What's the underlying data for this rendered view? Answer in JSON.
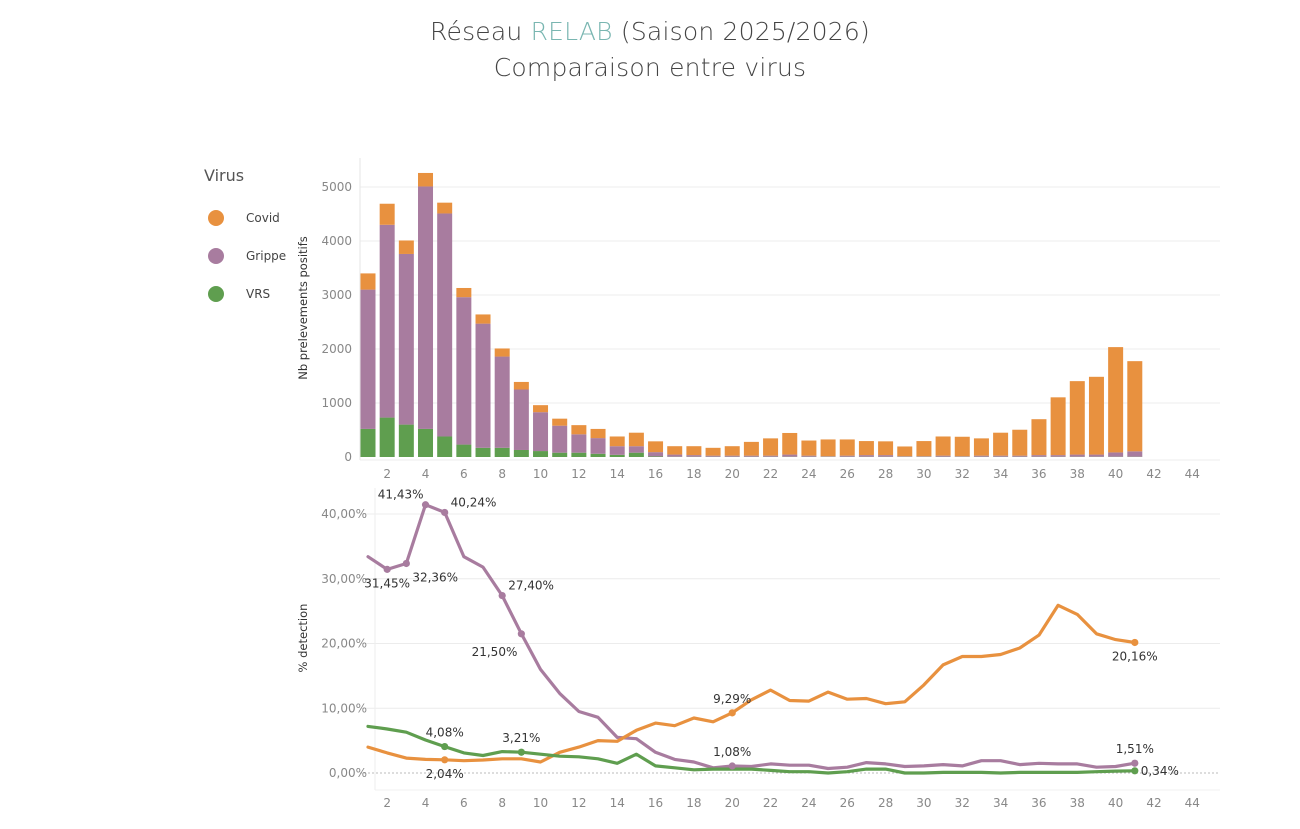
{
  "header": {
    "title_prefix": "Réseau",
    "title_accent": "RELAB",
    "title_suffix": "(Saison 2025/2026)",
    "subtitle": "Comparaison entre virus",
    "accent_color": "#79b6b1"
  },
  "legend": {
    "title": "Virus",
    "items": [
      {
        "label": "Covid",
        "color": "#e8913f"
      },
      {
        "label": "Grippe",
        "color": "#a87c9f"
      },
      {
        "label": "VRS",
        "color": "#5f9e4f"
      }
    ]
  },
  "chart_data": [
    {
      "type": "bar",
      "stacked": true,
      "ylabel": "Nb prelevements positifs",
      "xlabel": "",
      "ylim": [
        0,
        5300
      ],
      "xlim": [
        0.5,
        45
      ],
      "yticks": [
        0,
        1000,
        2000,
        3000,
        4000,
        5000
      ],
      "xticks": [
        2,
        4,
        6,
        8,
        10,
        12,
        14,
        16,
        18,
        20,
        22,
        24,
        26,
        28,
        30,
        32,
        34,
        36,
        38,
        40,
        42,
        44
      ],
      "grid": true,
      "stack_order": [
        "VRS",
        "Grippe",
        "Covid"
      ],
      "x": [
        1,
        2,
        3,
        4,
        5,
        6,
        7,
        8,
        9,
        10,
        11,
        12,
        13,
        14,
        15,
        16,
        17,
        18,
        19,
        20,
        21,
        22,
        23,
        24,
        25,
        26,
        27,
        28,
        29,
        30,
        31,
        32,
        33,
        34,
        35,
        36,
        37,
        38,
        39,
        40,
        41
      ],
      "series": [
        {
          "name": "VRS",
          "color": "#5f9e4f",
          "values": [
            520,
            730,
            600,
            520,
            380,
            230,
            170,
            170,
            130,
            110,
            80,
            80,
            60,
            40,
            80,
            10,
            5,
            5,
            5,
            5,
            5,
            5,
            5,
            5,
            5,
            5,
            5,
            5,
            5,
            5,
            5,
            5,
            5,
            5,
            5,
            5,
            5,
            5,
            5,
            5,
            5
          ]
        },
        {
          "name": "Grippe",
          "color": "#a87c9f",
          "values": [
            2580,
            3570,
            3160,
            4490,
            4130,
            2730,
            2300,
            1690,
            1120,
            720,
            500,
            340,
            290,
            160,
            120,
            80,
            40,
            30,
            20,
            20,
            20,
            20,
            40,
            20,
            10,
            20,
            30,
            30,
            10,
            10,
            20,
            10,
            20,
            20,
            20,
            30,
            30,
            40,
            40,
            80,
            100
          ]
        },
        {
          "name": "Covid",
          "color": "#e8913f",
          "values": [
            300,
            390,
            250,
            250,
            200,
            170,
            170,
            150,
            140,
            130,
            130,
            170,
            170,
            180,
            250,
            200,
            155,
            165,
            145,
            175,
            255,
            320,
            400,
            280,
            310,
            300,
            260,
            255,
            180,
            280,
            355,
            360,
            320,
            425,
            480,
            665,
            1070,
            1360,
            1440,
            1950,
            1670
          ]
        }
      ]
    },
    {
      "type": "line",
      "ylabel": "% detection",
      "xlabel": "",
      "ylim": [
        -5,
        44
      ],
      "xlim": [
        0.5,
        45
      ],
      "yticks": [
        "0,00%",
        "10,00%",
        "20,00%",
        "30,00%",
        "40,00%"
      ],
      "ytick_values": [
        0,
        10,
        20,
        30,
        40
      ],
      "xticks": [
        2,
        4,
        6,
        8,
        10,
        12,
        14,
        16,
        18,
        20,
        22,
        24,
        26,
        28,
        30,
        32,
        34,
        36,
        38,
        40,
        42,
        44
      ],
      "grid": true,
      "x": [
        1,
        2,
        3,
        4,
        5,
        6,
        7,
        8,
        9,
        10,
        11,
        12,
        13,
        14,
        15,
        16,
        17,
        18,
        19,
        20,
        21,
        22,
        23,
        24,
        25,
        26,
        27,
        28,
        29,
        30,
        31,
        32,
        33,
        34,
        35,
        36,
        37,
        38,
        39,
        40,
        41
      ],
      "series": [
        {
          "name": "Grippe",
          "color": "#a87c9f",
          "values": [
            33.4,
            31.45,
            32.36,
            41.43,
            40.24,
            33.4,
            31.8,
            27.4,
            21.5,
            16.0,
            12.3,
            9.5,
            8.6,
            5.5,
            5.3,
            3.2,
            2.1,
            1.7,
            0.8,
            1.08,
            1.0,
            1.4,
            1.2,
            1.2,
            0.7,
            0.9,
            1.6,
            1.4,
            1.0,
            1.1,
            1.3,
            1.1,
            1.9,
            1.9,
            1.3,
            1.5,
            1.4,
            1.4,
            0.9,
            1.0,
            1.51
          ]
        },
        {
          "name": "Covid",
          "color": "#e8913f",
          "values": [
            4.0,
            3.1,
            2.3,
            2.1,
            2.04,
            1.9,
            2.0,
            2.2,
            2.2,
            1.7,
            3.2,
            4.0,
            5.0,
            4.9,
            6.6,
            7.7,
            7.3,
            8.5,
            7.9,
            9.29,
            11.3,
            12.8,
            11.2,
            11.1,
            12.5,
            11.4,
            11.5,
            10.7,
            11.0,
            13.6,
            16.7,
            18.0,
            18.0,
            18.3,
            19.3,
            21.3,
            25.9,
            24.5,
            21.5,
            20.6,
            20.16
          ]
        },
        {
          "name": "VRS",
          "color": "#5f9e4f",
          "values": [
            7.2,
            6.8,
            6.3,
            5.1,
            4.08,
            3.1,
            2.7,
            3.3,
            3.21,
            2.9,
            2.6,
            2.5,
            2.2,
            1.5,
            2.9,
            1.1,
            0.8,
            0.5,
            0.6,
            0.6,
            0.6,
            0.4,
            0.2,
            0.2,
            0.0,
            0.2,
            0.6,
            0.6,
            0.0,
            0.0,
            0.1,
            0.1,
            0.1,
            0.0,
            0.1,
            0.1,
            0.1,
            0.1,
            0.2,
            0.3,
            0.34
          ]
        }
      ],
      "annotations": [
        {
          "series": "Grippe",
          "x": 2,
          "label": "31,45%",
          "pos": "below"
        },
        {
          "series": "Grippe",
          "x": 3,
          "label": "32,36%",
          "pos": "below-right"
        },
        {
          "series": "Grippe",
          "x": 4,
          "label": "41,43%",
          "pos": "above-left"
        },
        {
          "series": "Grippe",
          "x": 5,
          "label": "40,24%",
          "pos": "above-right"
        },
        {
          "series": "Grippe",
          "x": 8,
          "label": "27,40%",
          "pos": "above-right"
        },
        {
          "series": "Grippe",
          "x": 9,
          "label": "21,50%",
          "pos": "below-left"
        },
        {
          "series": "Grippe",
          "x": 20,
          "label": "1,08%",
          "pos": "above"
        },
        {
          "series": "Grippe",
          "x": 41,
          "label": "1,51%",
          "pos": "above"
        },
        {
          "series": "Covid",
          "x": 5,
          "label": "2,04%",
          "pos": "below"
        },
        {
          "series": "Covid",
          "x": 20,
          "label": "9,29%",
          "pos": "above"
        },
        {
          "series": "Covid",
          "x": 41,
          "label": "20,16%",
          "pos": "below"
        },
        {
          "series": "VRS",
          "x": 5,
          "label": "4,08%",
          "pos": "above"
        },
        {
          "series": "VRS",
          "x": 9,
          "label": "3,21%",
          "pos": "above"
        },
        {
          "series": "VRS",
          "x": 41,
          "label": "0,34%",
          "pos": "right"
        }
      ]
    }
  ]
}
